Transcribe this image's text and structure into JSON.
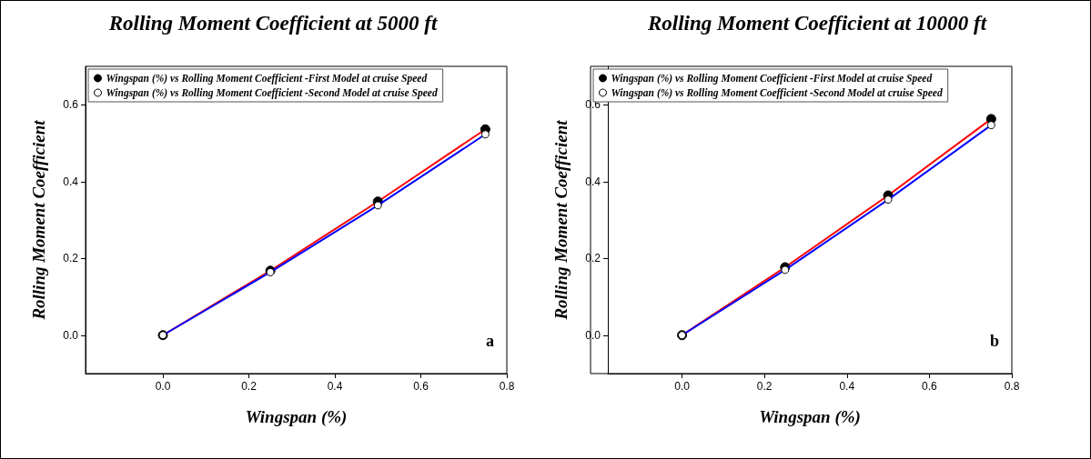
{
  "chart_data": [
    {
      "type": "line",
      "title": "Rolling Moment Coefficient at 5000 ft",
      "xlabel": "Wingspan (%)",
      "ylabel": "Rolling Moment Coefficient",
      "x": [
        0,
        0.25,
        0.5,
        0.75
      ],
      "series": [
        {
          "name": "Wingspan (%) vs Rolling Moment Coefficient -First Model at cruise Speed",
          "color": "#ff0000",
          "values": [
            0,
            0.168,
            0.348,
            0.536
          ]
        },
        {
          "name": "Wingspan (%) vs Rolling Moment Coefficient -Second Model at cruise Speed",
          "color": "#0000ff",
          "values": [
            0,
            0.164,
            0.338,
            0.523
          ]
        }
      ],
      "xlim": [
        -0.18,
        0.8
      ],
      "xticks": [
        {
          "value": 0,
          "label": "0.0"
        },
        0.2,
        0.4,
        0.6,
        0.8
      ],
      "ylim": [
        -0.1,
        0.7
      ],
      "yticks": [
        {
          "value": 0,
          "label": "0.0"
        },
        0.2,
        0.4,
        0.6
      ],
      "annotations": [
        "a"
      ],
      "legend": "top left",
      "marker": "circle",
      "line_style": "solid",
      "grid": false
    },
    {
      "type": "line",
      "title": "Rolling Moment Coefficient at 10000 ft",
      "xlabel": "Wingspan (%)",
      "ylabel": "Rolling Moment Coefficient",
      "x": [
        0,
        0.25,
        0.5,
        0.75
      ],
      "series": [
        {
          "name": "Wingspan (%) vs Rolling Moment Coefficient -First Model at cruise Speed",
          "color": "#ff0000",
          "values": [
            0,
            0.177,
            0.364,
            0.563
          ]
        },
        {
          "name": "Wingspan (%) vs Rolling Moment Coefficient -Second Model at cruise Speed",
          "color": "#0000ff",
          "values": [
            0,
            0.17,
            0.353,
            0.547
          ]
        }
      ],
      "xlim": [
        -0.18,
        0.8
      ],
      "xticks": [
        {
          "value": 0,
          "label": "0.0"
        },
        0.2,
        0.4,
        0.6,
        0.8
      ],
      "ylim": [
        -0.1,
        0.7
      ],
      "yticks": [
        {
          "value": 0,
          "label": "0.0"
        },
        0.2,
        0.4,
        0.6
      ],
      "annotations": [
        "b"
      ],
      "legend": "top left",
      "marker": "circle",
      "line_style": "solid",
      "grid": false
    }
  ]
}
